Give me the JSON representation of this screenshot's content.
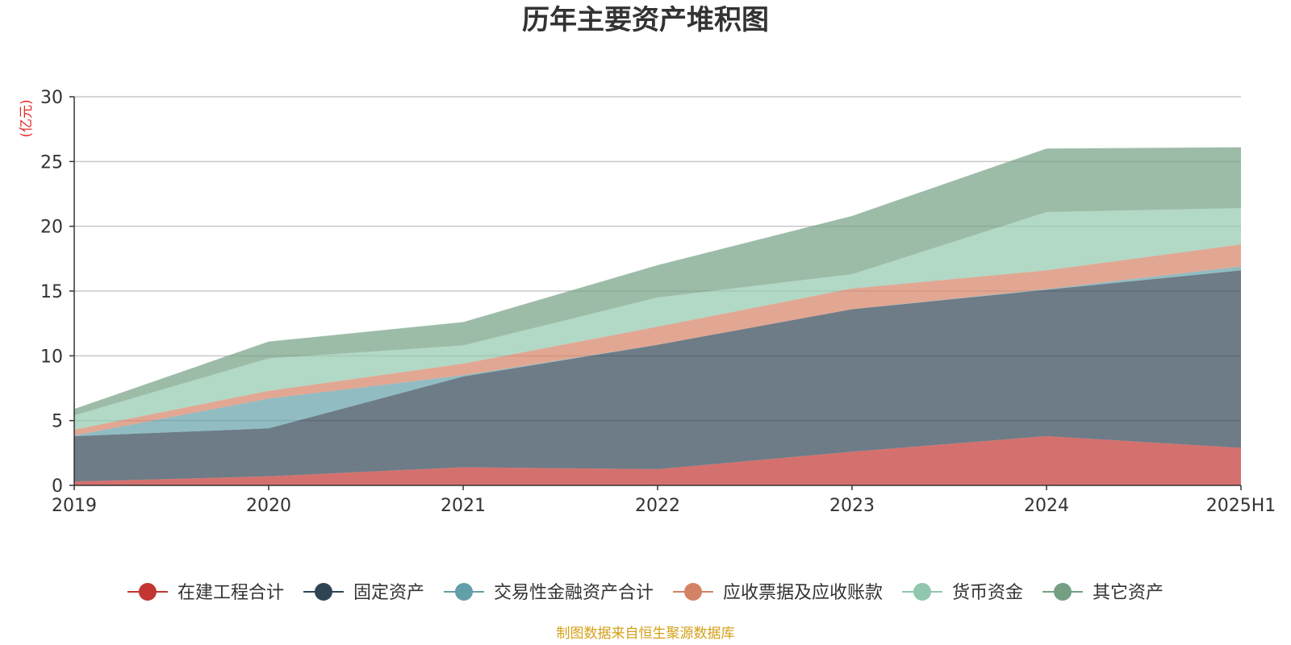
{
  "chart_data": {
    "type": "area",
    "stacked": true,
    "title": "历年主要资产堆积图",
    "y_unit": "(亿元)",
    "x": [
      "2019",
      "2020",
      "2021",
      "2022",
      "2023",
      "2024",
      "2025H1"
    ],
    "ylim": [
      0,
      30
    ],
    "yticks": [
      0,
      5,
      10,
      15,
      20,
      25,
      30
    ],
    "grid": true,
    "legend_position": "bottom",
    "series": [
      {
        "name": "在建工程合计",
        "color": "#c23531",
        "values": [
          0.3,
          0.7,
          1.4,
          1.25,
          2.6,
          3.8,
          2.9
        ]
      },
      {
        "name": "固定资产",
        "color": "#2f4554",
        "values": [
          3.5,
          3.7,
          7.0,
          9.6,
          11.0,
          11.3,
          13.7
        ]
      },
      {
        "name": "交易性金融资产合计",
        "color": "#61a0a8",
        "values": [
          0.05,
          2.3,
          0.1,
          0.0,
          0.0,
          0.05,
          0.3
        ]
      },
      {
        "name": "应收票据及应收账款",
        "color": "#d48265",
        "values": [
          0.45,
          0.6,
          0.9,
          1.4,
          1.6,
          1.45,
          1.7
        ]
      },
      {
        "name": "货币资金",
        "color": "#91c7ae",
        "values": [
          1.1,
          2.5,
          1.4,
          2.25,
          1.1,
          4.5,
          2.8
        ]
      },
      {
        "name": "其它资产",
        "color": "#749f83",
        "values": [
          0.5,
          1.3,
          1.8,
          2.5,
          4.5,
          4.9,
          4.7
        ]
      }
    ],
    "source_note": "制图数据来自恒生聚源数据库"
  }
}
